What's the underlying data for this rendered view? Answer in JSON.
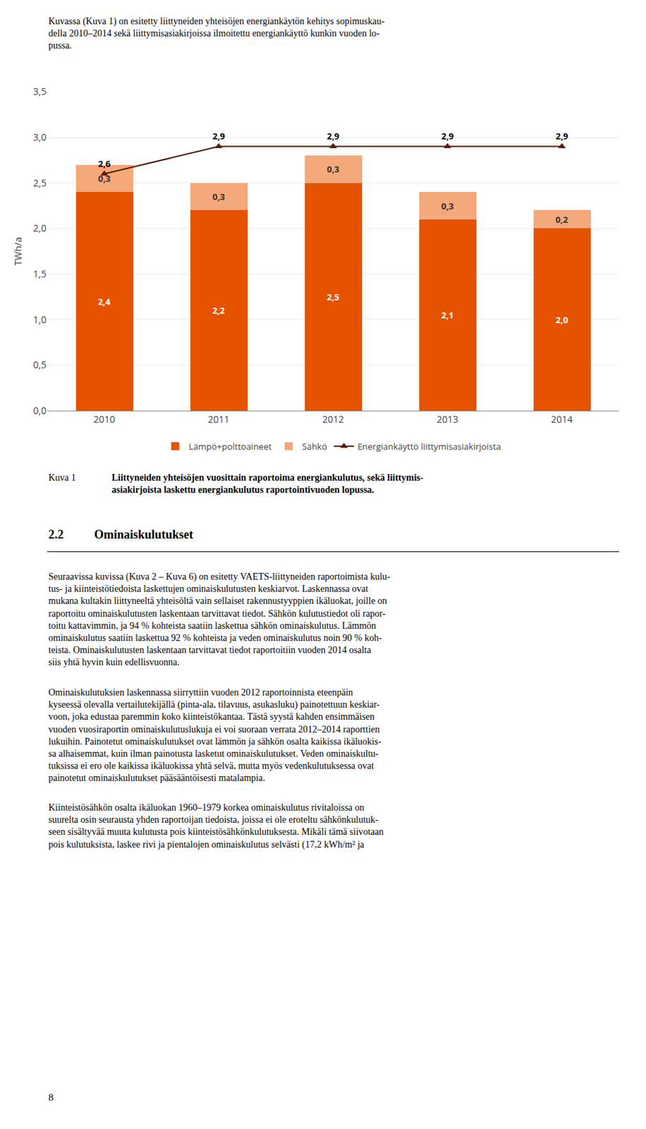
{
  "chart_data": {
    "type": "bar",
    "stacked": true,
    "categories": [
      "2010",
      "2011",
      "2012",
      "2013",
      "2014"
    ],
    "series": [
      {
        "name": "Lämpö+polttoaineet",
        "type": "bar",
        "color": "#e55300",
        "values": [
          2.4,
          2.2,
          2.5,
          2.1,
          2.0
        ],
        "value_labels": [
          "2,4",
          "2,2",
          "2,5",
          "2,1",
          "2,0"
        ]
      },
      {
        "name": "Sähkö",
        "type": "bar",
        "color": "#f5a87a",
        "values": [
          0.3,
          0.3,
          0.3,
          0.3,
          0.2
        ],
        "value_labels": [
          "0,3",
          "0,3",
          "0,3",
          "0,3",
          "0,2"
        ]
      },
      {
        "name": "Energiankäyttö liittymisasiakirjoista",
        "type": "line",
        "color": "#5a1a00",
        "marker": "triangle-up",
        "values": [
          2.6,
          2.9,
          2.9,
          2.9,
          2.9
        ],
        "value_labels": [
          "2,6",
          "2,9",
          "2,9",
          "2,9",
          "2,9"
        ]
      }
    ],
    "ylabel": "TWh/a",
    "ylim": [
      0,
      3.5
    ],
    "yticks": [
      {
        "value": 0.0,
        "label": "0,0"
      },
      {
        "value": 0.5,
        "label": "0,5"
      },
      {
        "value": 1.0,
        "label": "1,0"
      },
      {
        "value": 1.5,
        "label": "1,5"
      },
      {
        "value": 2.0,
        "label": "2,0"
      },
      {
        "value": 2.5,
        "label": "2,5"
      },
      {
        "value": 3.0,
        "label": "3,0"
      },
      {
        "value": 3.5,
        "label": "3,5"
      }
    ],
    "grid": true,
    "legend": "bottom",
    "data_labels": true,
    "annotations": [
      "Kuvassa (Kuva 1) on esitetty liittyneiden yhteisöjen energiankäytön kehitys sopimuskau-\ndella 2010–2014 sekä liittymisasiakirjoissa ilmoitettu energiankäyttö kunkin vuoden lo-\npussa.",
      "Kuva 1",
      "Liittyneiden yhteisöjen vuosittain raportoima energiankulutus, sekä liittymis-\nasiakirjoista laskettu energiankulutus raportointivuoden lopussa.",
      "2.2",
      "Ominaiskulutukset",
      "Seuraavissa kuvissa (Kuva 2 – Kuva 6) on esitetty VAETS-liittyneiden raportoimista kulu-\ntus- ja kiinteistötiedoista laskettujen ominaiskulutusten keskiarvot. Laskennassa ovat\nmukana kultakin liittyneeltä yhteisöltä vain sellaiset rakennustyyppien ikäluokat, joille on\nraportoitu ominaiskulutusten laskentaan tarvittavat tiedot. Sähkön kulutustiedot oli rapor-\ntoitu kattavimmin, ja 94 % kohteista saatiin laskettua sähkön ominaiskulutus. Lämmön\nominaiskulutus saatiin laskettua 92 % kohteista ja veden ominaiskulutus noin 90 % koh-\nteista. Ominaiskulutusten laskentaan tarvittavat tiedot raportoitiin vuoden 2014 osalta\nsiis yhtä hyvin kuin edellisvuonna.",
      "Ominaiskulutuksien laskennassa siirryttiin vuoden 2012 raportoinnista eteenpäin\nkyseessä olevalla vertailutekijällä (pinta-ala, tilavuus, asukasluku) painotettuun keskiar-\nvoon, joka edustaa paremmin koko kiinteistökantaa. Tästä syystä kahden ensimmäisen\nvuoden vuosiraportin ominaiskulutuslukuja ei voi suoraan verrata 2012–2014 raporttien\nlukuihin. Painotetut ominaiskulutukset ovat lämmön ja sähkön osalta kaikissa ikäluokis-\nsa alhaisemmat, kuin ilman painotusta lasketut ominaiskulutukset. Veden ominaiskultu-\ntuksissa ei ero ole kaikissa ikäluokissa yhtä selvä, mutta myös vedenkulutuksessa ovat\npainotetut ominaiskulutukset pääsääntöisesti matalampia.",
      "Kiinteistösähkön osalta ikäluokan 1960–1979 korkea ominaiskulutus rivitaloissa on\nsuurelta osin seurausta yhden raportoijan tiedoista, joissa ei ole eroteltu sähkönkulutuk-\nseen sisältyvää muuta kulutusta pois kiinteistösähkönkulutuksesta. Mikäli tämä siivotaan\npois kulutuksista, laskee rivi ja pientalojen ominaiskulutus selvästi (17,2 kWh/m² ja",
      "8"
    ]
  }
}
